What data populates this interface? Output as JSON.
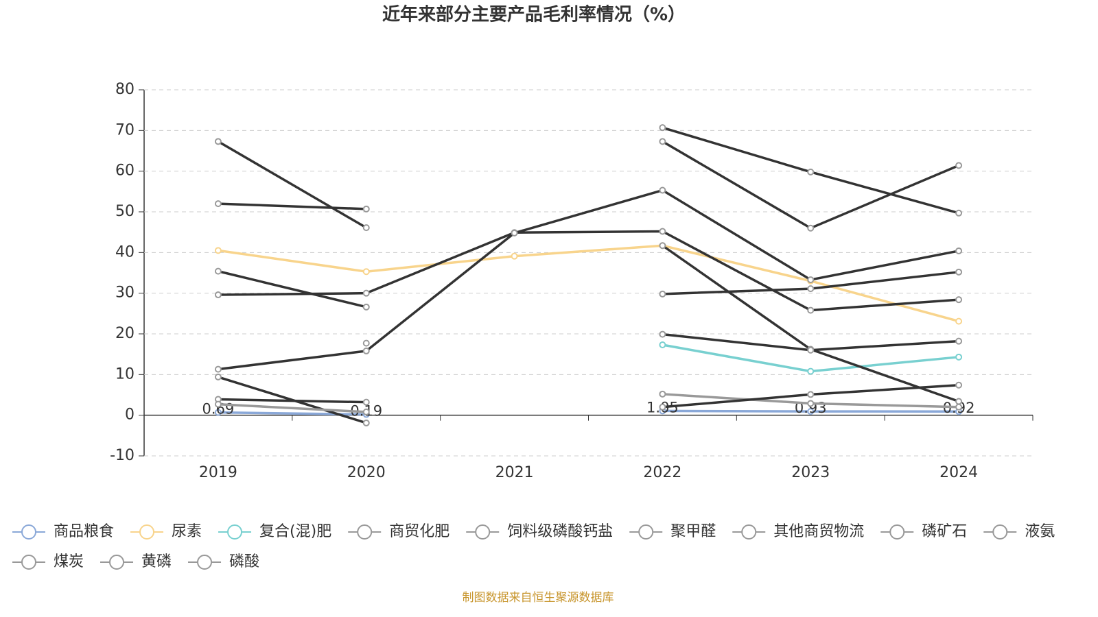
{
  "chart_data": {
    "type": "line",
    "title": "近年来部分主要产品毛利率情况（%）",
    "source": "制图数据来自恒生聚源数据库",
    "categories": [
      "2019",
      "2020",
      "2021",
      "2022",
      "2023",
      "2024"
    ],
    "ylim": [
      -10,
      80
    ],
    "yticks": [
      -10,
      0,
      10,
      20,
      30,
      40,
      50,
      60,
      70,
      80
    ],
    "grid": true,
    "legend": "bottom",
    "series": [
      {
        "name": "商品粮食",
        "color": "#8aa8d8",
        "show_labels": true,
        "values": [
          0.69,
          0.19,
          null,
          1.05,
          0.93,
          0.92
        ]
      },
      {
        "name": "尿素",
        "color": "#f8d48c",
        "values": [
          40.5,
          35.3,
          39.1,
          41.7,
          33.0,
          23.1
        ]
      },
      {
        "name": "复合(混)肥",
        "color": "#78d0d0",
        "values": [
          null,
          null,
          null,
          17.3,
          10.8,
          14.3
        ]
      },
      {
        "name": "商贸化肥",
        "color": "#333333",
        "values": [
          67.3,
          46.1,
          null,
          70.7,
          59.8,
          49.7
        ]
      },
      {
        "name": "饲料级磷酸钙盐",
        "color": "#333333",
        "values": [
          52.0,
          50.7,
          null,
          67.3,
          46.0,
          61.4
        ]
      },
      {
        "name": "聚甲醛",
        "color": "#333333",
        "values": [
          35.4,
          26.6,
          null,
          41.7,
          16.2,
          3.4
        ]
      },
      {
        "name": "其他商贸物流",
        "color": "#333333",
        "values": [
          29.6,
          30.0,
          44.9,
          45.2,
          25.8,
          28.4
        ]
      },
      {
        "name": "磷矿石",
        "color": "#333333",
        "values": [
          11.3,
          15.8,
          44.8,
          55.3,
          33.3,
          40.4
        ]
      },
      {
        "name": "液氨",
        "color": "#333333",
        "values": [
          9.4,
          -1.9,
          null,
          29.8,
          31.1,
          35.2
        ]
      },
      {
        "name": "煤炭",
        "color": "#333333",
        "values": [
          3.9,
          3.2,
          null,
          19.9,
          16.0,
          18.2
        ]
      },
      {
        "name": "黄磷",
        "color": "#999999",
        "values": [
          2.7,
          0.8,
          null,
          5.2,
          2.9,
          2.0
        ]
      },
      {
        "name": "磷酸",
        "color": "#333333",
        "values": [
          null,
          17.7,
          null,
          2.0,
          5.1,
          7.4
        ]
      }
    ]
  }
}
